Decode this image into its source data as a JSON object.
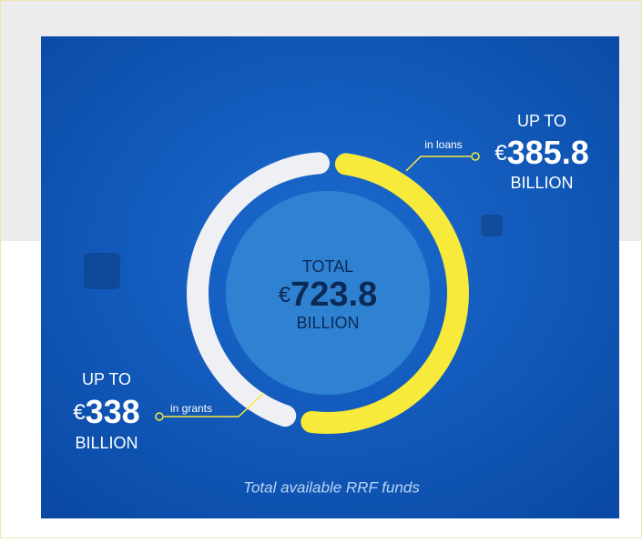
{
  "chart_data": {
    "type": "donut",
    "series": [
      {
        "name": "in loans",
        "color": "#f7ea3a",
        "values": [
          385.8
        ],
        "value_labels": [
          "€385.8"
        ],
        "prefix": "UP TO",
        "unit": "BILLION"
      },
      {
        "name": "in grants",
        "color": "#eef0f4",
        "values": [
          338
        ],
        "value_labels": [
          "€338"
        ],
        "prefix": "UP TO",
        "unit": "BILLION"
      }
    ],
    "total": {
      "label": "TOTAL",
      "value": 723.8,
      "value_label": "€723.8",
      "unit": "BILLION"
    },
    "caption": "Total available RRF funds"
  }
}
